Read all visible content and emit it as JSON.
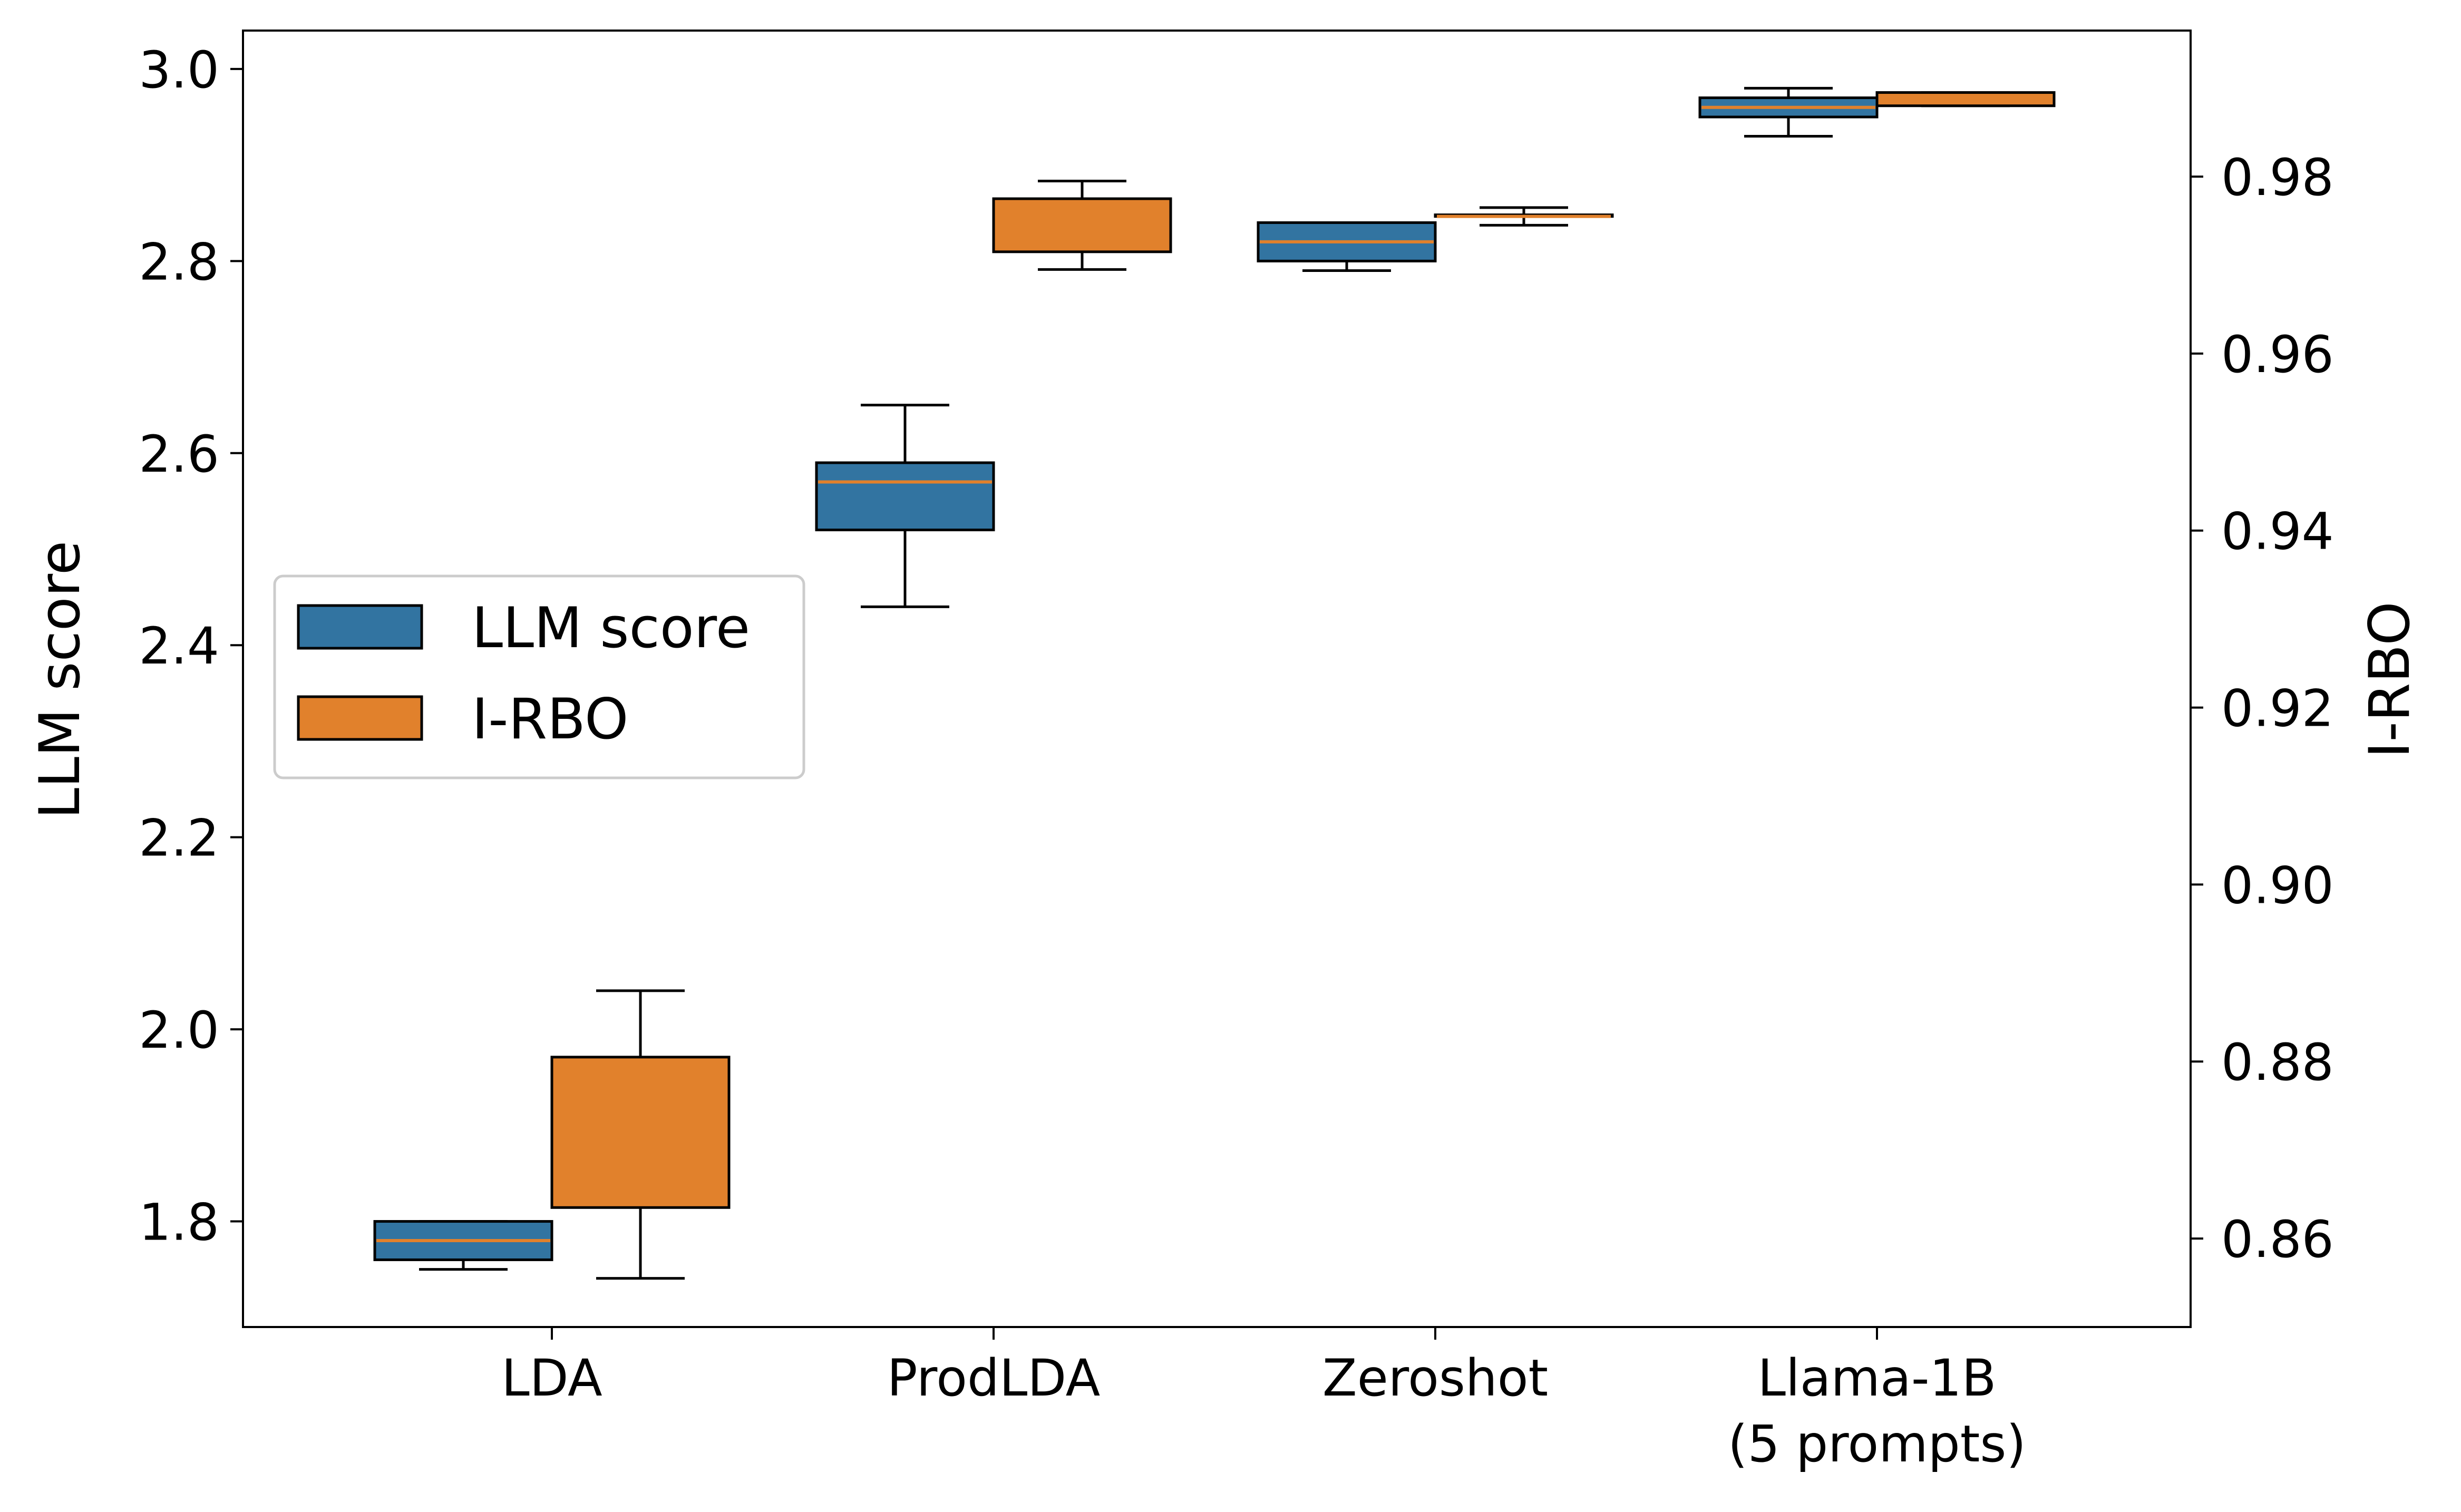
{
  "chart_data": {
    "type": "box",
    "categories": [
      "LDA",
      "ProdLDA",
      "Zeroshot",
      "Llama-1B\n(5 prompts)"
    ],
    "ylabel": "LLM score",
    "ylabel_right": "I-RBO",
    "ylim": [
      1.69,
      3.04
    ],
    "ylim_right": [
      0.85,
      0.9965
    ],
    "yticks": [
      "1.8",
      "2.0",
      "2.2",
      "2.4",
      "2.6",
      "2.8",
      "3.0"
    ],
    "yticks_right": [
      "0.86",
      "0.88",
      "0.90",
      "0.92",
      "0.94",
      "0.96",
      "0.98"
    ],
    "legend_position": "center-left",
    "grid": false,
    "series": [
      {
        "name": "LLM score",
        "axis": "left",
        "color": "#3274a1",
        "median_color": "#e1812c",
        "boxes": [
          {
            "whisker_low": 1.75,
            "q1": 1.76,
            "median": 1.78,
            "q3": 1.8,
            "whisker_high": 1.8
          },
          {
            "whisker_low": 2.44,
            "q1": 2.52,
            "median": 2.57,
            "q3": 2.59,
            "whisker_high": 2.65
          },
          {
            "whisker_low": 2.79,
            "q1": 2.8,
            "median": 2.82,
            "q3": 2.84,
            "whisker_high": 2.84
          },
          {
            "whisker_low": 2.93,
            "q1": 2.95,
            "median": 2.96,
            "q3": 2.97,
            "whisker_high": 2.98
          }
        ]
      },
      {
        "name": "I-RBO",
        "axis": "right",
        "color": "#e1812c",
        "median_color": "#e1812c",
        "boxes": [
          {
            "whisker_low": 0.8555,
            "q1": 0.8635,
            "median": 0.8705,
            "q3": 0.8805,
            "whisker_high": 0.888
          },
          {
            "whisker_low": 0.9695,
            "q1": 0.9715,
            "median": 0.9765,
            "q3": 0.9775,
            "whisker_high": 0.9795
          },
          {
            "whisker_low": 0.9745,
            "q1": 0.9755,
            "median": 0.9755,
            "q3": 0.9755,
            "whisker_high": 0.9765
          },
          {
            "whisker_low": 0.988,
            "q1": 0.988,
            "median": 0.9885,
            "q3": 0.9895,
            "whisker_high": 0.9895
          }
        ]
      }
    ]
  }
}
